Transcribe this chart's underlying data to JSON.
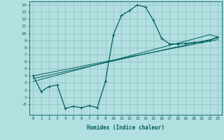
{
  "xlabel": "Humidex (Indice chaleur)",
  "bg_color": "#b2dfdf",
  "grid_color": "#8fbfbf",
  "line_color": "#006060",
  "x_data": [
    0,
    1,
    2,
    3,
    4,
    5,
    6,
    7,
    8,
    9,
    10,
    11,
    12,
    13,
    14,
    15,
    16,
    17,
    18,
    19,
    20,
    21,
    22,
    23
  ],
  "y_main": [
    4.0,
    1.8,
    2.5,
    2.7,
    -0.6,
    -0.3,
    -0.5,
    -0.2,
    -0.5,
    3.2,
    9.8,
    12.5,
    13.2,
    14.0,
    13.7,
    11.8,
    9.3,
    8.5,
    8.5,
    8.6,
    8.7,
    8.8,
    9.0,
    9.5
  ],
  "y_line1": [
    4.0,
    4.22,
    4.44,
    4.67,
    4.89,
    5.11,
    5.33,
    5.56,
    5.78,
    6.0,
    6.22,
    6.44,
    6.67,
    6.89,
    7.11,
    7.33,
    7.56,
    7.78,
    8.0,
    8.22,
    8.44,
    8.67,
    8.89,
    9.11
  ],
  "y_line2": [
    3.6,
    3.85,
    4.1,
    4.35,
    4.6,
    4.85,
    5.1,
    5.35,
    5.6,
    5.85,
    6.1,
    6.35,
    6.6,
    6.85,
    7.1,
    7.35,
    7.6,
    7.85,
    8.1,
    8.35,
    8.6,
    8.85,
    9.1,
    9.35
  ],
  "y_line3": [
    3.2,
    3.5,
    3.8,
    4.1,
    4.4,
    4.7,
    5.0,
    5.3,
    5.6,
    5.9,
    6.2,
    6.5,
    6.8,
    7.1,
    7.4,
    7.7,
    8.0,
    8.3,
    8.6,
    8.9,
    9.2,
    9.5,
    9.8,
    9.5
  ],
  "xlim": [
    -0.5,
    23.5
  ],
  "ylim": [
    -1.5,
    14.5
  ],
  "yticks": [
    0,
    1,
    2,
    3,
    4,
    5,
    6,
    7,
    8,
    9,
    10,
    11,
    12,
    13,
    14
  ],
  "ytick_labels": [
    "-0",
    "1",
    "2",
    "3",
    "4",
    "5",
    "6",
    "7",
    "8",
    "9",
    "10",
    "11",
    "12",
    "13",
    "14"
  ],
  "xticks": [
    0,
    1,
    2,
    3,
    4,
    5,
    6,
    7,
    8,
    9,
    10,
    11,
    12,
    13,
    14,
    15,
    16,
    17,
    18,
    19,
    20,
    21,
    22,
    23
  ]
}
